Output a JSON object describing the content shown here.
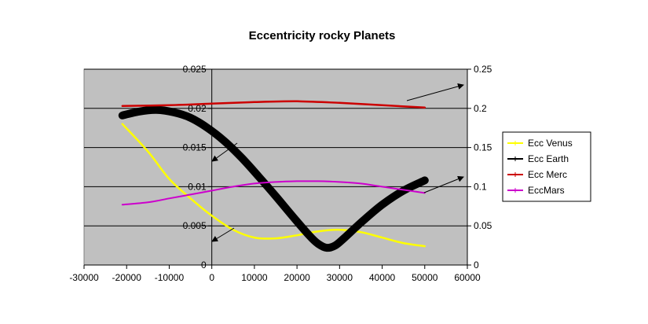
{
  "chart_data": {
    "type": "line",
    "title": "Eccentricity rocky Planets",
    "xlabel": "",
    "ylabel": "",
    "xlim": [
      -30000,
      60000
    ],
    "ylim_left": [
      0,
      0.025
    ],
    "ylim_right": [
      0,
      0.25
    ],
    "x_ticks": [
      "-30000",
      "-20000",
      "-10000",
      "0",
      "10000",
      "20000",
      "30000",
      "40000",
      "50000",
      "60000"
    ],
    "y_left_ticks": [
      "0",
      "0.005",
      "0.01",
      "0.015",
      "0.02",
      "0.025"
    ],
    "y_right_ticks": [
      "0",
      "0.05",
      "0.1",
      "0.15",
      "0.2",
      "0.25"
    ],
    "grid": "horizontal",
    "legend_position": "right",
    "series": [
      {
        "name": "Ecc Venus",
        "axis": "left",
        "color": "#ffff00",
        "x": [
          -21000,
          -15000,
          -10000,
          -5000,
          0,
          5000,
          10000,
          15000,
          20000,
          25000,
          30000,
          35000,
          40000,
          45000,
          50000
        ],
        "y": [
          0.018,
          0.0145,
          0.011,
          0.0085,
          0.0063,
          0.0045,
          0.0035,
          0.0034,
          0.0038,
          0.0043,
          0.0045,
          0.0042,
          0.0035,
          0.0028,
          0.0024
        ]
      },
      {
        "name": "Ecc Earth",
        "axis": "left",
        "color": "#000000",
        "x": [
          -21000,
          -17000,
          -13000,
          -9000,
          -5000,
          -1000,
          3000,
          7000,
          11000,
          15000,
          19000,
          23000,
          25000,
          27000,
          29000,
          31000,
          35000,
          40000,
          45000,
          50000
        ],
        "y": [
          0.0191,
          0.0196,
          0.0198,
          0.0195,
          0.0188,
          0.0175,
          0.0158,
          0.0137,
          0.0113,
          0.0088,
          0.0062,
          0.0037,
          0.0027,
          0.0022,
          0.0025,
          0.0034,
          0.0054,
          0.0077,
          0.0095,
          0.0108
        ]
      },
      {
        "name": "Ecc Merc",
        "axis": "right",
        "color": "#cc0000",
        "x": [
          -21000,
          -10000,
          0,
          10000,
          20000,
          30000,
          40000,
          50000
        ],
        "y": [
          0.203,
          0.204,
          0.206,
          0.208,
          0.209,
          0.207,
          0.204,
          0.201
        ]
      },
      {
        "name": "EccMars",
        "axis": "right",
        "color": "#cc00cc",
        "x": [
          -21000,
          -15000,
          -10000,
          -5000,
          0,
          5000,
          10000,
          15000,
          20000,
          25000,
          30000,
          35000,
          40000,
          45000,
          50000
        ],
        "y": [
          0.077,
          0.08,
          0.085,
          0.09,
          0.095,
          0.1,
          0.104,
          0.106,
          0.107,
          0.107,
          0.106,
          0.104,
          0.1,
          0.096,
          0.092
        ]
      }
    ]
  }
}
